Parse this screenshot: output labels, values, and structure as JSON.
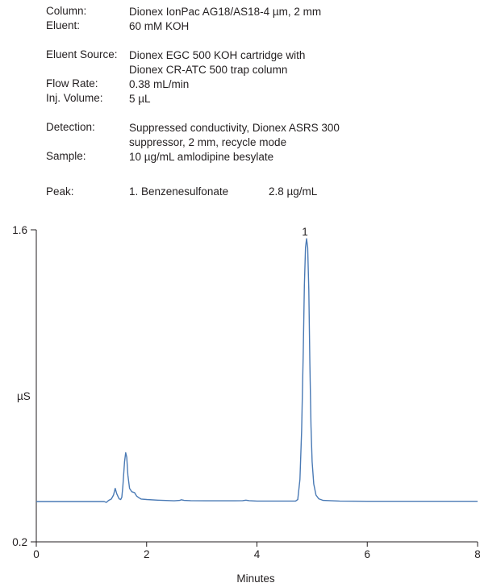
{
  "conditions": [
    {
      "label": "Column:",
      "lines": [
        "Dionex IonPac AG18/AS18-4 µm, 2 mm"
      ]
    },
    {
      "label": "Eluent:",
      "lines": [
        "60 mM KOH"
      ]
    },
    {
      "label": "Eluent Source:",
      "lines": [
        "Dionex EGC 500 KOH cartridge with",
        "Dionex CR-ATC 500 trap column"
      ]
    },
    {
      "label": "Flow Rate:",
      "lines": [
        "0.38 mL/min"
      ]
    },
    {
      "label": "Inj. Volume:",
      "lines": [
        "5 µL"
      ]
    },
    {
      "label": "Detection:",
      "lines": [
        "Suppressed conductivity, Dionex ASRS 300",
        "suppressor, 2 mm, recycle mode"
      ]
    },
    {
      "label": "Sample:",
      "lines": [
        "10 µg/mL amlodipine besylate"
      ]
    }
  ],
  "peak_table": {
    "label": "Peak:",
    "name": "1. Benzenesulfonate",
    "concentration": "2.8 µg/mL"
  },
  "chart_data": {
    "type": "line",
    "title": "",
    "xlabel": "Minutes",
    "ylabel": "µS",
    "xlim": [
      0,
      8
    ],
    "ylim": [
      0.2,
      1.6
    ],
    "x_ticks": [
      "0",
      "2",
      "4",
      "6",
      "8"
    ],
    "y_ticks": [
      "0.2",
      "1.6"
    ],
    "line_color": "#4a7ab5",
    "grid": false,
    "peak_labels": [
      {
        "text": "1",
        "x": 4.9,
        "y": 1.6
      }
    ],
    "series": [
      {
        "x": [
          0,
          1.15,
          1.23,
          1.27,
          1.31,
          1.36,
          1.4,
          1.43,
          1.46,
          1.5,
          1.53,
          1.55,
          1.57,
          1.6,
          1.62,
          1.64,
          1.66,
          1.69,
          1.73,
          1.78,
          1.82,
          1.86,
          1.9,
          2.0,
          2.2,
          2.5,
          2.6,
          2.63,
          2.68,
          2.8,
          3.2,
          3.6,
          3.74,
          3.8,
          3.86,
          4.0,
          4.5,
          4.7,
          4.74,
          4.78,
          4.81,
          4.84,
          4.86,
          4.88,
          4.9,
          4.92,
          4.94,
          4.96,
          4.98,
          5.0,
          5.03,
          5.07,
          5.12,
          5.2,
          5.5,
          6.0,
          7.0,
          8.0
        ],
        "y": [
          0.381,
          0.381,
          0.381,
          0.377,
          0.386,
          0.392,
          0.41,
          0.44,
          0.415,
          0.393,
          0.39,
          0.4,
          0.45,
          0.56,
          0.6,
          0.58,
          0.5,
          0.44,
          0.425,
          0.421,
          0.405,
          0.398,
          0.392,
          0.39,
          0.387,
          0.384,
          0.386,
          0.389,
          0.386,
          0.385,
          0.384,
          0.384,
          0.385,
          0.387,
          0.385,
          0.383,
          0.383,
          0.383,
          0.39,
          0.48,
          0.7,
          1.05,
          1.35,
          1.52,
          1.56,
          1.52,
          1.33,
          1.0,
          0.72,
          0.56,
          0.46,
          0.41,
          0.393,
          0.386,
          0.383,
          0.382,
          0.382,
          0.382
        ]
      }
    ]
  }
}
